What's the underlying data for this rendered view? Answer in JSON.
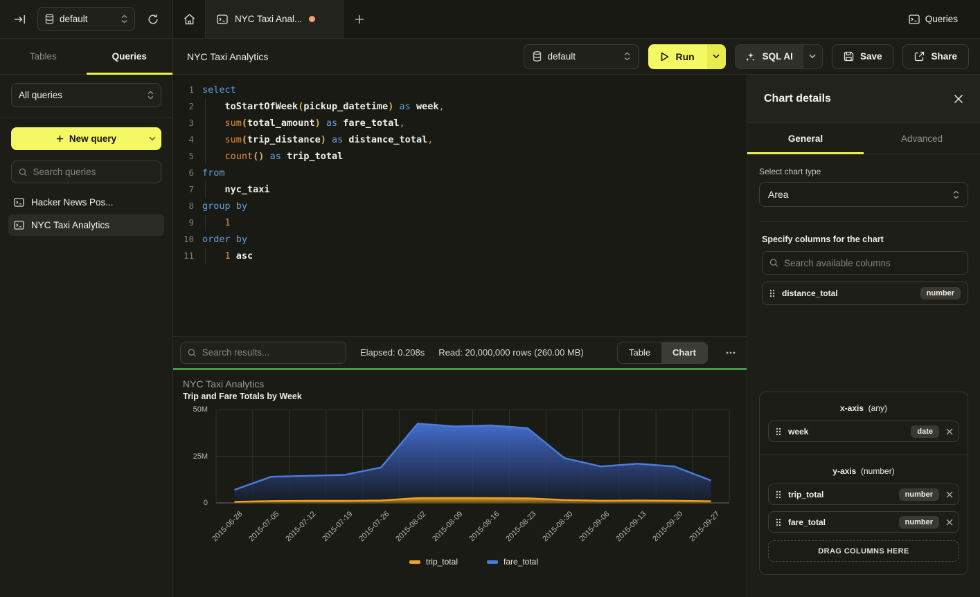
{
  "topbar": {
    "database_selector": "default",
    "tab_title": "NYC Taxi Anal...",
    "queries_label": "Queries"
  },
  "sidebar": {
    "tabs": [
      {
        "label": "Tables",
        "active": false
      },
      {
        "label": "Queries",
        "active": true
      }
    ],
    "filter_value": "All queries",
    "new_query_label": "New query",
    "search_placeholder": "Search queries",
    "query_items": [
      {
        "label": "Hacker News Pos...",
        "selected": false
      },
      {
        "label": "NYC Taxi Analytics",
        "selected": true
      }
    ]
  },
  "toolbar": {
    "title": "NYC Taxi Analytics",
    "database_selector": "default",
    "run_label": "Run",
    "sql_ai_label": "SQL AI",
    "save_label": "Save",
    "share_label": "Share"
  },
  "editor": {
    "lines": [
      {
        "n": "1",
        "indent": false,
        "tokens": [
          {
            "t": "select",
            "c": "kw"
          }
        ]
      },
      {
        "n": "2",
        "indent": true,
        "tokens": [
          {
            "t": "toStartOfWeek",
            "c": "id"
          },
          {
            "t": "(",
            "c": "par"
          },
          {
            "t": "pickup_datetime",
            "c": "id"
          },
          {
            "t": ")",
            "c": "par"
          },
          {
            "t": " ",
            "c": "pl"
          },
          {
            "t": "as",
            "c": "kw"
          },
          {
            "t": " ",
            "c": "pl"
          },
          {
            "t": "week",
            "c": "id"
          },
          {
            "t": ",",
            "c": "num"
          }
        ]
      },
      {
        "n": "3",
        "indent": true,
        "tokens": [
          {
            "t": "sum",
            "c": "fn"
          },
          {
            "t": "(",
            "c": "par"
          },
          {
            "t": "total_amount",
            "c": "id"
          },
          {
            "t": ")",
            "c": "par"
          },
          {
            "t": " ",
            "c": "pl"
          },
          {
            "t": "as",
            "c": "kw"
          },
          {
            "t": " ",
            "c": "pl"
          },
          {
            "t": "fare_total",
            "c": "id"
          },
          {
            "t": ",",
            "c": "num"
          }
        ]
      },
      {
        "n": "4",
        "indent": true,
        "tokens": [
          {
            "t": "sum",
            "c": "fn"
          },
          {
            "t": "(",
            "c": "par"
          },
          {
            "t": "trip_distance",
            "c": "id"
          },
          {
            "t": ")",
            "c": "par"
          },
          {
            "t": " ",
            "c": "pl"
          },
          {
            "t": "as",
            "c": "kw"
          },
          {
            "t": " ",
            "c": "pl"
          },
          {
            "t": "distance_total",
            "c": "id"
          },
          {
            "t": ",",
            "c": "num"
          }
        ]
      },
      {
        "n": "5",
        "indent": true,
        "tokens": [
          {
            "t": "count",
            "c": "fn"
          },
          {
            "t": "()",
            "c": "par"
          },
          {
            "t": " ",
            "c": "pl"
          },
          {
            "t": "as",
            "c": "kw"
          },
          {
            "t": " ",
            "c": "pl"
          },
          {
            "t": "trip_total",
            "c": "id"
          }
        ]
      },
      {
        "n": "6",
        "indent": false,
        "tokens": [
          {
            "t": "from",
            "c": "kw"
          }
        ]
      },
      {
        "n": "7",
        "indent": true,
        "tokens": [
          {
            "t": "nyc_taxi",
            "c": "id"
          }
        ]
      },
      {
        "n": "8",
        "indent": false,
        "tokens": [
          {
            "t": "group by",
            "c": "kw"
          }
        ]
      },
      {
        "n": "9",
        "indent": true,
        "tokens": [
          {
            "t": "1",
            "c": "num"
          }
        ]
      },
      {
        "n": "10",
        "indent": false,
        "tokens": [
          {
            "t": "order by",
            "c": "kw"
          }
        ]
      },
      {
        "n": "11",
        "indent": true,
        "tokens": [
          {
            "t": "1",
            "c": "num"
          },
          {
            "t": " ",
            "c": "pl"
          },
          {
            "t": "asc",
            "c": "id"
          }
        ]
      }
    ]
  },
  "results": {
    "search_placeholder": "Search results...",
    "elapsed": "Elapsed: 0.208s",
    "read": "Read: 20,000,000 rows (260.00 MB)",
    "toggle": [
      {
        "label": "Table",
        "active": false
      },
      {
        "label": "Chart",
        "active": true
      }
    ]
  },
  "chart_data": {
    "type": "area",
    "title": "NYC Taxi Analytics",
    "subtitle": "Trip and Fare Totals by Week",
    "x": [
      "2015-06-28",
      "2015-07-05",
      "2015-07-12",
      "2015-07-19",
      "2015-07-26",
      "2015-08-02",
      "2015-08-09",
      "2015-08-16",
      "2015-08-23",
      "2015-08-30",
      "2015-09-06",
      "2015-09-13",
      "2015-09-20",
      "2015-09-27"
    ],
    "series": [
      {
        "name": "trip_total",
        "color": "#eda31f",
        "values_millions": [
          0.6,
          1.0,
          1.1,
          1.1,
          1.3,
          2.6,
          2.7,
          2.6,
          2.5,
          1.6,
          1.2,
          1.3,
          1.2,
          0.9
        ]
      },
      {
        "name": "fare_total",
        "color": "#4a7de0",
        "values_millions": [
          7,
          14,
          14.5,
          15,
          19,
          42.5,
          41,
          41.5,
          40,
          24,
          19.5,
          21,
          19.5,
          12
        ]
      }
    ],
    "ylabel": "",
    "xlabel": "",
    "ylim_millions": [
      0,
      50
    ],
    "yticks": [
      {
        "label": "0",
        "value": 0
      },
      {
        "label": "25M",
        "value": 25
      },
      {
        "label": "50M",
        "value": 50
      }
    ],
    "grid": true,
    "legend_position": "bottom"
  },
  "chart_details": {
    "header": "Chart details",
    "tabs": [
      {
        "label": "General",
        "active": true
      },
      {
        "label": "Advanced",
        "active": false
      }
    ],
    "chart_type_label": "Select chart type",
    "chart_type_value": "Area",
    "columns_label": "Specify columns for the chart",
    "search_placeholder": "Search available columns",
    "available_columns": [
      {
        "name": "distance_total",
        "type": "number"
      }
    ],
    "x_axis": {
      "title": "x-axis",
      "hint": "(any)",
      "items": [
        {
          "name": "week",
          "type": "date"
        }
      ]
    },
    "y_axis": {
      "title": "y-axis",
      "hint": "(number)",
      "items": [
        {
          "name": "trip_total",
          "type": "number"
        },
        {
          "name": "fare_total",
          "type": "number"
        }
      ]
    },
    "drop_zone_label": "DRAG COLUMNS HERE"
  }
}
